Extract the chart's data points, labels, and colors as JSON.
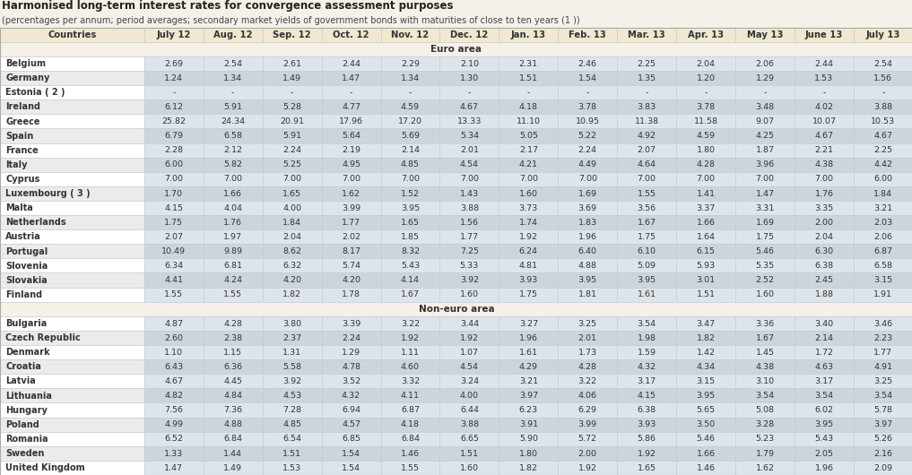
{
  "title_line1": "Harmonised long-term interest rates for convergence assessment purposes",
  "title_line2": "(percentages per annum; period averages; secondary market yields of government bonds with maturities of close to ten years (1 ))",
  "columns": [
    "Countries",
    "July 12",
    "Aug. 12",
    "Sep. 12",
    "Oct. 12",
    "Nov. 12",
    "Dec. 12",
    "Jan. 13",
    "Feb. 13",
    "Mar. 13",
    "Apr. 13",
    "May 13",
    "June 13",
    "July 13"
  ],
  "euro_area_label": "Euro area",
  "non_euro_area_label": "Non-euro area",
  "euro_countries": [
    "Belgium",
    "Germany",
    "Estonia ( 2 )",
    "Ireland",
    "Greece",
    "Spain",
    "France",
    "Italy",
    "Cyprus",
    "Luxembourg ( 3 )",
    "Malta",
    "Netherlands",
    "Austria",
    "Portugal",
    "Slovenia",
    "Slovakia",
    "Finland"
  ],
  "non_euro_countries": [
    "Bulgaria",
    "Czech Republic",
    "Denmark",
    "Croatia",
    "Latvia",
    "Lithuania",
    "Hungary",
    "Poland",
    "Romania",
    "Sweden",
    "United Kingdom"
  ],
  "euro_data": [
    [
      2.69,
      2.54,
      2.61,
      2.44,
      2.29,
      2.1,
      2.31,
      2.46,
      2.25,
      2.04,
      2.06,
      2.44,
      2.54
    ],
    [
      1.24,
      1.34,
      1.49,
      1.47,
      1.34,
      1.3,
      1.51,
      1.54,
      1.35,
      1.2,
      1.29,
      1.53,
      1.56
    ],
    [
      null,
      null,
      null,
      null,
      null,
      null,
      null,
      null,
      null,
      null,
      null,
      null,
      null
    ],
    [
      6.12,
      5.91,
      5.28,
      4.77,
      4.59,
      4.67,
      4.18,
      3.78,
      3.83,
      3.78,
      3.48,
      4.02,
      3.88
    ],
    [
      25.82,
      24.34,
      20.91,
      17.96,
      17.2,
      13.33,
      11.1,
      10.95,
      11.38,
      11.58,
      9.07,
      10.07,
      10.53
    ],
    [
      6.79,
      6.58,
      5.91,
      5.64,
      5.69,
      5.34,
      5.05,
      5.22,
      4.92,
      4.59,
      4.25,
      4.67,
      4.67
    ],
    [
      2.28,
      2.12,
      2.24,
      2.19,
      2.14,
      2.01,
      2.17,
      2.24,
      2.07,
      1.8,
      1.87,
      2.21,
      2.25
    ],
    [
      6.0,
      5.82,
      5.25,
      4.95,
      4.85,
      4.54,
      4.21,
      4.49,
      4.64,
      4.28,
      3.96,
      4.38,
      4.42
    ],
    [
      7.0,
      7.0,
      7.0,
      7.0,
      7.0,
      7.0,
      7.0,
      7.0,
      7.0,
      7.0,
      7.0,
      7.0,
      6.0
    ],
    [
      1.7,
      1.66,
      1.65,
      1.62,
      1.52,
      1.43,
      1.6,
      1.69,
      1.55,
      1.41,
      1.47,
      1.76,
      1.84
    ],
    [
      4.15,
      4.04,
      4.0,
      3.99,
      3.95,
      3.88,
      3.73,
      3.69,
      3.56,
      3.37,
      3.31,
      3.35,
      3.21
    ],
    [
      1.75,
      1.76,
      1.84,
      1.77,
      1.65,
      1.56,
      1.74,
      1.83,
      1.67,
      1.66,
      1.69,
      2.0,
      2.03
    ],
    [
      2.07,
      1.97,
      2.04,
      2.02,
      1.85,
      1.77,
      1.92,
      1.96,
      1.75,
      1.64,
      1.75,
      2.04,
      2.06
    ],
    [
      10.49,
      9.89,
      8.62,
      8.17,
      8.32,
      7.25,
      6.24,
      6.4,
      6.1,
      6.15,
      5.46,
      6.3,
      6.87
    ],
    [
      6.34,
      6.81,
      6.32,
      5.74,
      5.43,
      5.33,
      4.81,
      4.88,
      5.09,
      5.93,
      5.35,
      6.38,
      6.58
    ],
    [
      4.41,
      4.24,
      4.2,
      4.2,
      4.14,
      3.92,
      3.93,
      3.95,
      3.95,
      3.01,
      2.52,
      2.45,
      3.15
    ],
    [
      1.55,
      1.55,
      1.82,
      1.78,
      1.67,
      1.6,
      1.75,
      1.81,
      1.61,
      1.51,
      1.6,
      1.88,
      1.91
    ]
  ],
  "non_euro_data": [
    [
      4.87,
      4.28,
      3.8,
      3.39,
      3.22,
      3.44,
      3.27,
      3.25,
      3.54,
      3.47,
      3.36,
      3.4,
      3.46
    ],
    [
      2.6,
      2.38,
      2.37,
      2.24,
      1.92,
      1.92,
      1.96,
      2.01,
      1.98,
      1.82,
      1.67,
      2.14,
      2.23
    ],
    [
      1.1,
      1.15,
      1.31,
      1.29,
      1.11,
      1.07,
      1.61,
      1.73,
      1.59,
      1.42,
      1.45,
      1.72,
      1.77
    ],
    [
      6.43,
      6.36,
      5.58,
      4.78,
      4.6,
      4.54,
      4.29,
      4.28,
      4.32,
      4.34,
      4.38,
      4.63,
      4.91
    ],
    [
      4.67,
      4.45,
      3.92,
      3.52,
      3.32,
      3.24,
      3.21,
      3.22,
      3.17,
      3.15,
      3.1,
      3.17,
      3.25
    ],
    [
      4.82,
      4.84,
      4.53,
      4.32,
      4.11,
      4.0,
      3.97,
      4.06,
      4.15,
      3.95,
      3.54,
      3.54,
      3.54
    ],
    [
      7.56,
      7.36,
      7.28,
      6.94,
      6.87,
      6.44,
      6.23,
      6.29,
      6.38,
      5.65,
      5.08,
      6.02,
      5.78
    ],
    [
      4.99,
      4.88,
      4.85,
      4.57,
      4.18,
      3.88,
      3.91,
      3.99,
      3.93,
      3.5,
      3.28,
      3.95,
      3.97
    ],
    [
      6.52,
      6.84,
      6.54,
      6.85,
      6.84,
      6.65,
      5.9,
      5.72,
      5.86,
      5.46,
      5.23,
      5.43,
      5.26
    ],
    [
      1.33,
      1.44,
      1.51,
      1.54,
      1.46,
      1.51,
      1.8,
      2.0,
      1.92,
      1.66,
      1.79,
      2.05,
      2.16
    ],
    [
      1.47,
      1.49,
      1.53,
      1.54,
      1.55,
      1.6,
      1.82,
      1.92,
      1.65,
      1.46,
      1.62,
      1.96,
      2.09
    ]
  ],
  "bg_color": "#ffffff",
  "page_bg": "#f5f0e8",
  "header_bg": "#f0e8d0",
  "country_col_bg_even": "#ffffff",
  "country_col_bg_odd": "#ebebeb",
  "data_cell_bg_even": "#dde5ec",
  "data_cell_bg_odd": "#ccd5de",
  "section_header_bg": "#f5f0e8",
  "border_color": "#c8c8c8",
  "text_color": "#333333",
  "title1_color": "#222222",
  "title2_color": "#444444"
}
